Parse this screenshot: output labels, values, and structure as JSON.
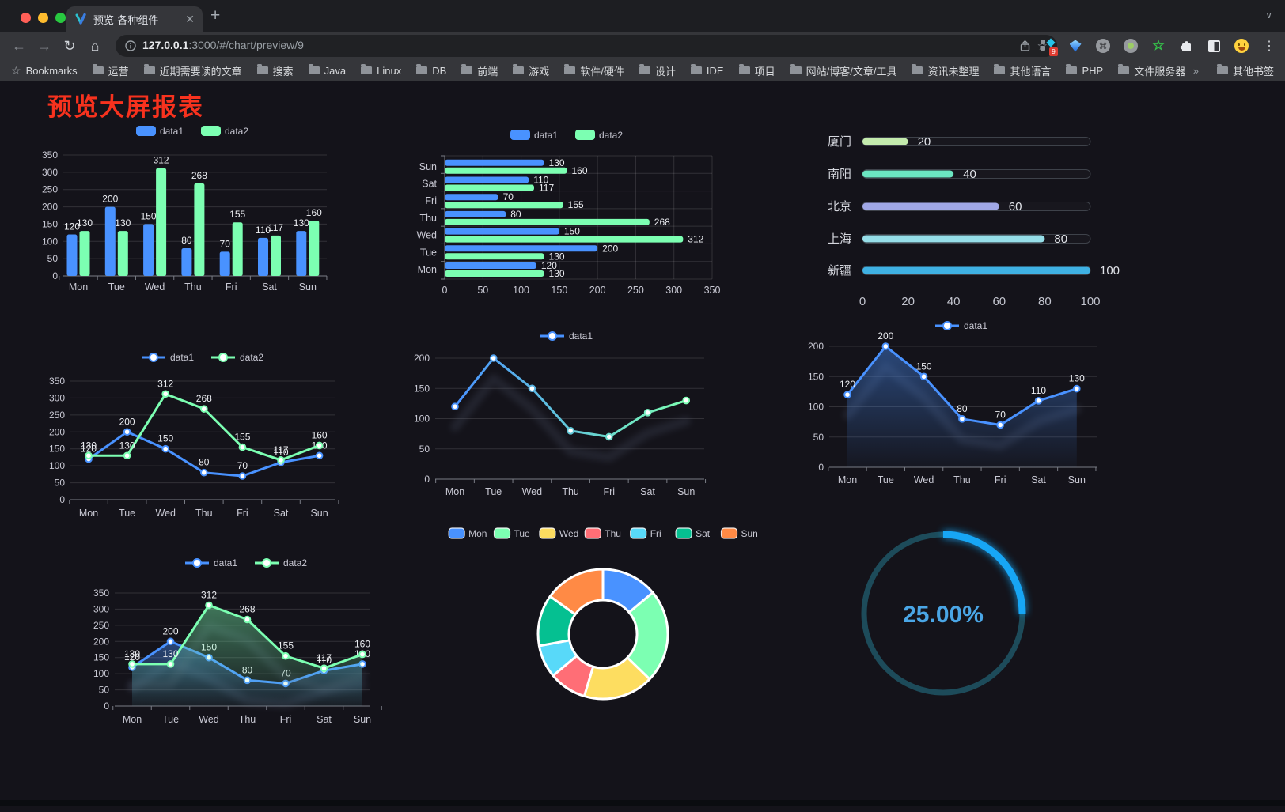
{
  "browser": {
    "window_controls": [
      {
        "name": "close",
        "color": "#ff5f57"
      },
      {
        "name": "minimize",
        "color": "#febc2e"
      },
      {
        "name": "zoom",
        "color": "#28c840"
      }
    ],
    "tab": {
      "title": "预览-各种组件"
    },
    "url": {
      "host": "127.0.0.1",
      "path": ":3000/#/chart/preview/9"
    },
    "extensions_badge": "9",
    "bookmarks": {
      "root_label": "Bookmarks",
      "items": [
        "运营",
        "近期需要读的文章",
        "搜索",
        "Java",
        "Linux",
        "DB",
        "前端",
        "游戏",
        "软件/硬件",
        "设计",
        "IDE",
        "项目",
        "网站/博客/文章/工具",
        "资讯未整理",
        "其他语言",
        "PHP",
        "文件服务器"
      ],
      "overflow": "»",
      "other_label": "其他书签"
    }
  },
  "page": {
    "title": "预览大屏报表",
    "title_color": "#f7321e"
  },
  "chart_data": [
    {
      "id": "bar-grouped",
      "type": "bar",
      "categories": [
        "Mon",
        "Tue",
        "Wed",
        "Thu",
        "Fri",
        "Sat",
        "Sun"
      ],
      "series": [
        {
          "name": "data1",
          "color": "#4992ff",
          "values": [
            120,
            200,
            150,
            80,
            70,
            110,
            130
          ]
        },
        {
          "name": "data2",
          "color": "#7cffb2",
          "values": [
            130,
            130,
            312,
            268,
            155,
            117,
            160
          ]
        }
      ],
      "ylim": [
        0,
        350
      ],
      "ystep": 50,
      "legend_position": "top",
      "grid": true
    },
    {
      "id": "hbar-grouped",
      "type": "bar-horizontal",
      "categories": [
        "Mon",
        "Tue",
        "Wed",
        "Thu",
        "Fri",
        "Sat",
        "Sun"
      ],
      "series": [
        {
          "name": "data1",
          "color": "#4992ff",
          "values": [
            120,
            200,
            150,
            80,
            70,
            110,
            130
          ]
        },
        {
          "name": "data2",
          "color": "#7cffb2",
          "values": [
            130,
            130,
            312,
            268,
            155,
            117,
            160
          ]
        }
      ],
      "xlim": [
        0,
        350
      ],
      "xstep": 50,
      "legend_position": "top"
    },
    {
      "id": "progress-bars",
      "type": "bar-horizontal",
      "rows": [
        {
          "label": "厦门",
          "value": 20,
          "color": "#c4ebad"
        },
        {
          "label": "南阳",
          "value": 40,
          "color": "#6be6c1"
        },
        {
          "label": "北京",
          "value": 60,
          "color": "#a0a7e6"
        },
        {
          "label": "上海",
          "value": 80,
          "color": "#96dee8"
        },
        {
          "label": "新疆",
          "value": 100,
          "color": "#3fb1e3"
        }
      ],
      "xlim": [
        0,
        100
      ],
      "xticks": [
        0,
        20,
        40,
        60,
        80,
        100
      ]
    },
    {
      "id": "line-two",
      "type": "line",
      "categories": [
        "Mon",
        "Tue",
        "Wed",
        "Thu",
        "Fri",
        "Sat",
        "Sun"
      ],
      "series": [
        {
          "name": "data1",
          "color": "#4992ff",
          "values": [
            120,
            200,
            150,
            80,
            70,
            110,
            130
          ]
        },
        {
          "name": "data2",
          "color": "#7cffb2",
          "values": [
            130,
            130,
            312,
            268,
            155,
            117,
            160
          ]
        }
      ],
      "ylim": [
        0,
        350
      ],
      "ystep": 50,
      "show_labels": true,
      "legend_position": "top"
    },
    {
      "id": "line-gradient",
      "type": "line",
      "categories": [
        "Mon",
        "Tue",
        "Wed",
        "Thu",
        "Fri",
        "Sat",
        "Sun"
      ],
      "series": [
        {
          "name": "data1",
          "gradient": [
            "#4992ff",
            "#7cffb2"
          ],
          "values": [
            120,
            200,
            150,
            80,
            70,
            110,
            130
          ]
        }
      ],
      "ylim": [
        0,
        200
      ],
      "ystep": 50,
      "show_labels": false,
      "shadow": true,
      "legend_position": "top"
    },
    {
      "id": "area-single",
      "type": "area",
      "categories": [
        "Mon",
        "Tue",
        "Wed",
        "Thu",
        "Fri",
        "Sat",
        "Sun"
      ],
      "series": [
        {
          "name": "data1",
          "color": "#4992ff",
          "values": [
            120,
            200,
            150,
            80,
            70,
            110,
            130
          ]
        }
      ],
      "ylim": [
        0,
        200
      ],
      "ystep": 50,
      "show_labels": true,
      "shadow": true,
      "legend_position": "top"
    },
    {
      "id": "area-two",
      "type": "area",
      "categories": [
        "Mon",
        "Tue",
        "Wed",
        "Thu",
        "Fri",
        "Sat",
        "Sun"
      ],
      "series": [
        {
          "name": "data1",
          "color": "#4992ff",
          "values": [
            120,
            200,
            150,
            80,
            70,
            110,
            130
          ]
        },
        {
          "name": "data2",
          "color": "#7cffb2",
          "values": [
            130,
            130,
            312,
            268,
            155,
            117,
            160
          ]
        }
      ],
      "ylim": [
        0,
        350
      ],
      "ystep": 50,
      "show_labels": true,
      "shadow": true,
      "legend_position": "top"
    },
    {
      "id": "donut",
      "type": "pie",
      "inner_radius_pct": 52,
      "legend_position": "top",
      "slices": [
        {
          "label": "Mon",
          "value": 120,
          "color": "#4992ff"
        },
        {
          "label": "Tue",
          "value": 200,
          "color": "#7cffb2"
        },
        {
          "label": "Wed",
          "value": 150,
          "color": "#fddd60"
        },
        {
          "label": "Thu",
          "value": 80,
          "color": "#ff6e76"
        },
        {
          "label": "Fri",
          "value": 70,
          "color": "#58d9f9"
        },
        {
          "label": "Sat",
          "value": 110,
          "color": "#05c091"
        },
        {
          "label": "Sun",
          "value": 130,
          "color": "#ff8a45"
        }
      ]
    },
    {
      "id": "gauge",
      "type": "gauge",
      "value": 25,
      "label": "25.00%",
      "color": "#17a6f5",
      "track_color": "#1d4b5a",
      "text_color": "#4aa6e6"
    }
  ]
}
